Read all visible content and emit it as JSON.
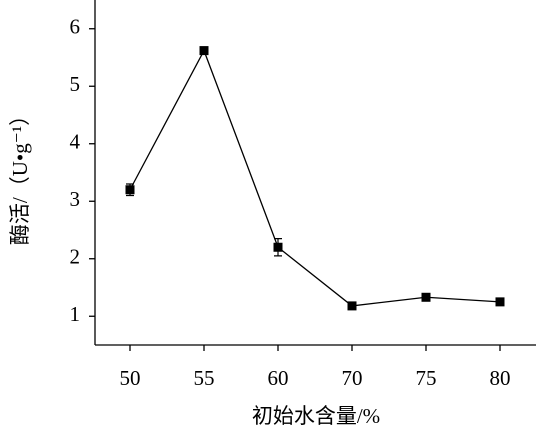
{
  "chart_data": {
    "type": "line",
    "x_label": "初始水含量/%",
    "y_label": "酶活/（U•g⁻¹）",
    "categories": [
      "50",
      "55",
      "60",
      "70",
      "75",
      "80"
    ],
    "values": [
      3.2,
      5.62,
      2.2,
      1.18,
      1.33,
      1.25
    ],
    "errors": [
      0.1,
      0.04,
      0.15,
      0.03,
      0.03,
      0.03
    ],
    "color": "#000000",
    "ylim": [
      0.5,
      6.5
    ],
    "yticks": [
      1,
      2,
      3,
      4,
      5,
      6
    ],
    "grid": false
  }
}
